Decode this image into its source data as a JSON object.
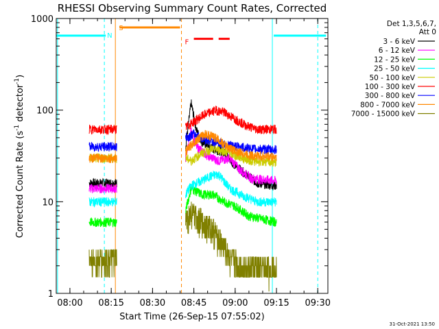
{
  "chart_data": {
    "type": "line",
    "title": "RHESSI Observing Summary Count Rates, Corrected",
    "xlabel": "Start Time (26-Sep-15 07:55:02)",
    "ylabel_parts": [
      "Corrected Count Rate (s",
      "-1",
      " detector",
      "-1",
      ")"
    ],
    "yscale": "log",
    "ylim": [
      1,
      1000
    ],
    "xlim": [
      "07:55:02",
      "09:33:40"
    ],
    "x_ticks": [
      "08:00",
      "08:15",
      "08:30",
      "08:45",
      "09:00",
      "09:15",
      "09:30"
    ],
    "y_ticks": [
      "1",
      "10",
      "100",
      "1000"
    ],
    "legend_header": [
      "Det 1,3,5,6,7,",
      "Att 0"
    ],
    "legend_position": "top-right, outside plot",
    "series": [
      {
        "name": "3 - 6 keV",
        "color": "#000000",
        "base": 15,
        "peak": 120,
        "segments": [
          {
            "start": "08:07",
            "end": "08:17",
            "base": 16
          },
          {
            "start": "08:42",
            "end": "09:15",
            "base": 15,
            "points": [
              [
                "08:42",
                40
              ],
              [
                "08:44",
                120
              ],
              [
                "08:46",
                60
              ],
              [
                "08:48",
                45
              ],
              [
                "08:52",
                38
              ],
              [
                "08:56",
                35
              ],
              [
                "09:00",
                25
              ],
              [
                "09:04",
                20
              ],
              [
                "09:08",
                16
              ],
              [
                "09:15",
                15
              ]
            ]
          }
        ]
      },
      {
        "name": "6 - 12 keV",
        "color": "#ff00ff",
        "segments": [
          {
            "start": "08:07",
            "end": "08:17",
            "base": 14
          },
          {
            "start": "08:42",
            "end": "09:15",
            "base": 18,
            "points": [
              [
                "08:42",
                30
              ],
              [
                "08:44",
                60
              ],
              [
                "08:46",
                40
              ],
              [
                "08:50",
                32
              ],
              [
                "08:54",
                28
              ],
              [
                "08:58",
                30
              ],
              [
                "09:02",
                22
              ],
              [
                "09:06",
                18
              ],
              [
                "09:15",
                17
              ]
            ]
          }
        ]
      },
      {
        "name": "12 - 25 keV",
        "color": "#00ff00",
        "segments": [
          {
            "start": "08:07",
            "end": "08:17",
            "base": 6
          },
          {
            "start": "08:42",
            "end": "09:15",
            "base": 6,
            "points": [
              [
                "08:42",
                8
              ],
              [
                "08:44",
                14
              ],
              [
                "08:48",
                12
              ],
              [
                "08:52",
                12
              ],
              [
                "08:56",
                10
              ],
              [
                "09:00",
                9
              ],
              [
                "09:05",
                7
              ],
              [
                "09:15",
                6
              ]
            ]
          }
        ]
      },
      {
        "name": "25 - 50 keV",
        "color": "#00ffff",
        "segments": [
          {
            "start": "08:07",
            "end": "08:17",
            "base": 10
          },
          {
            "start": "08:42",
            "end": "09:15",
            "base": 10,
            "points": [
              [
                "08:42",
                12
              ],
              [
                "08:44",
                15
              ],
              [
                "08:48",
                17
              ],
              [
                "08:51",
                19
              ],
              [
                "08:54",
                20
              ],
              [
                "08:58",
                14
              ],
              [
                "09:02",
                12
              ],
              [
                "09:08",
                10
              ],
              [
                "09:15",
                10
              ]
            ]
          }
        ]
      },
      {
        "name": "50 - 100 keV",
        "color": "#cccc00",
        "segments": [
          {
            "start": "08:07",
            "end": "08:17",
            "base": 30
          },
          {
            "start": "08:42",
            "end": "09:15",
            "base": 28,
            "points": [
              [
                "08:42",
                30
              ],
              [
                "08:44",
                28
              ],
              [
                "08:48",
                34
              ],
              [
                "08:52",
                38
              ],
              [
                "08:56",
                36
              ],
              [
                "09:00",
                32
              ],
              [
                "09:06",
                28
              ],
              [
                "09:15",
                27
              ]
            ]
          }
        ]
      },
      {
        "name": "100 - 300 keV",
        "color": "#ff0000",
        "segments": [
          {
            "start": "08:07",
            "end": "08:17",
            "base": 62
          },
          {
            "start": "08:42",
            "end": "09:15",
            "base": 62,
            "points": [
              [
                "08:42",
                65
              ],
              [
                "08:45",
                75
              ],
              [
                "08:49",
                90
              ],
              [
                "08:53",
                100
              ],
              [
                "08:56",
                95
              ],
              [
                "09:00",
                80
              ],
              [
                "09:04",
                68
              ],
              [
                "09:08",
                62
              ],
              [
                "09:15",
                62
              ]
            ]
          }
        ]
      },
      {
        "name": "300 - 800 keV",
        "color": "#0000ff",
        "segments": [
          {
            "start": "08:07",
            "end": "08:17",
            "base": 40
          },
          {
            "start": "08:42",
            "end": "09:15",
            "base": 38,
            "points": [
              [
                "08:42",
                50
              ],
              [
                "08:45",
                55
              ],
              [
                "08:49",
                48
              ],
              [
                "08:53",
                45
              ],
              [
                "08:57",
                42
              ],
              [
                "09:01",
                40
              ],
              [
                "09:06",
                38
              ],
              [
                "09:15",
                37
              ]
            ]
          }
        ]
      },
      {
        "name": "800 - 7000 keV",
        "color": "#ff8800",
        "segments": [
          {
            "start": "08:07",
            "end": "08:17",
            "base": 30
          },
          {
            "start": "08:42",
            "end": "09:15",
            "base": 32,
            "points": [
              [
                "08:42",
                35
              ],
              [
                "08:45",
                45
              ],
              [
                "08:49",
                55
              ],
              [
                "08:53",
                50
              ],
              [
                "08:57",
                40
              ],
              [
                "09:01",
                35
              ],
              [
                "09:06",
                32
              ],
              [
                "09:15",
                31
              ]
            ]
          }
        ]
      },
      {
        "name": "7000 - 15000 keV",
        "color": "#808000",
        "segments": [
          {
            "start": "08:07",
            "end": "08:17",
            "base": 2.3
          },
          {
            "start": "08:42",
            "end": "09:15",
            "base": 2,
            "points": [
              [
                "08:42",
                6
              ],
              [
                "08:44",
                7.5
              ],
              [
                "08:48",
                6
              ],
              [
                "08:52",
                5
              ],
              [
                "08:55",
                3.5
              ],
              [
                "08:58",
                2.5
              ],
              [
                "09:02",
                2
              ],
              [
                "09:10",
                1.8
              ],
              [
                "09:15",
                2
              ]
            ]
          }
        ]
      }
    ],
    "state_bars": [
      {
        "label": "N",
        "color": "#00ffff",
        "value": 650,
        "spans": [
          [
            "07:55:02",
            "08:13"
          ],
          [
            "09:14",
            "09:33"
          ]
        ]
      },
      {
        "label": "S",
        "color": "#ff8800",
        "value": 800,
        "spans": [
          [
            "08:18",
            "08:40"
          ]
        ]
      },
      {
        "label": "F",
        "color": "#ff0000",
        "value": 600,
        "spans": [
          [
            "08:45",
            "08:52"
          ],
          [
            "08:54",
            "08:58"
          ]
        ]
      }
    ],
    "vertical_lines": [
      {
        "color": "#00ffff",
        "time": "07:55:30",
        "style": "solid"
      },
      {
        "color": "#00ffff",
        "time": "08:12:30",
        "style": "dashed"
      },
      {
        "color": "#ff8800",
        "time": "08:16:30",
        "style": "solid"
      },
      {
        "color": "#ff8800",
        "time": "08:40:30",
        "style": "dashed"
      },
      {
        "color": "#00ffff",
        "time": "09:13:30",
        "style": "solid"
      },
      {
        "color": "#00ffff",
        "time": "09:30:00",
        "style": "dashed"
      }
    ],
    "flag_labels": [
      {
        "text": "N",
        "color": "#00ffff",
        "time": "08:12:30",
        "value": 660
      },
      {
        "text": "S",
        "color": "#ff8800",
        "time": "08:16:45",
        "value": 800
      },
      {
        "text": "F",
        "color": "#ff0000",
        "time": "08:40:45",
        "value": 560
      }
    ]
  },
  "footer_timestamp": "31-Oct-2021 13:50"
}
